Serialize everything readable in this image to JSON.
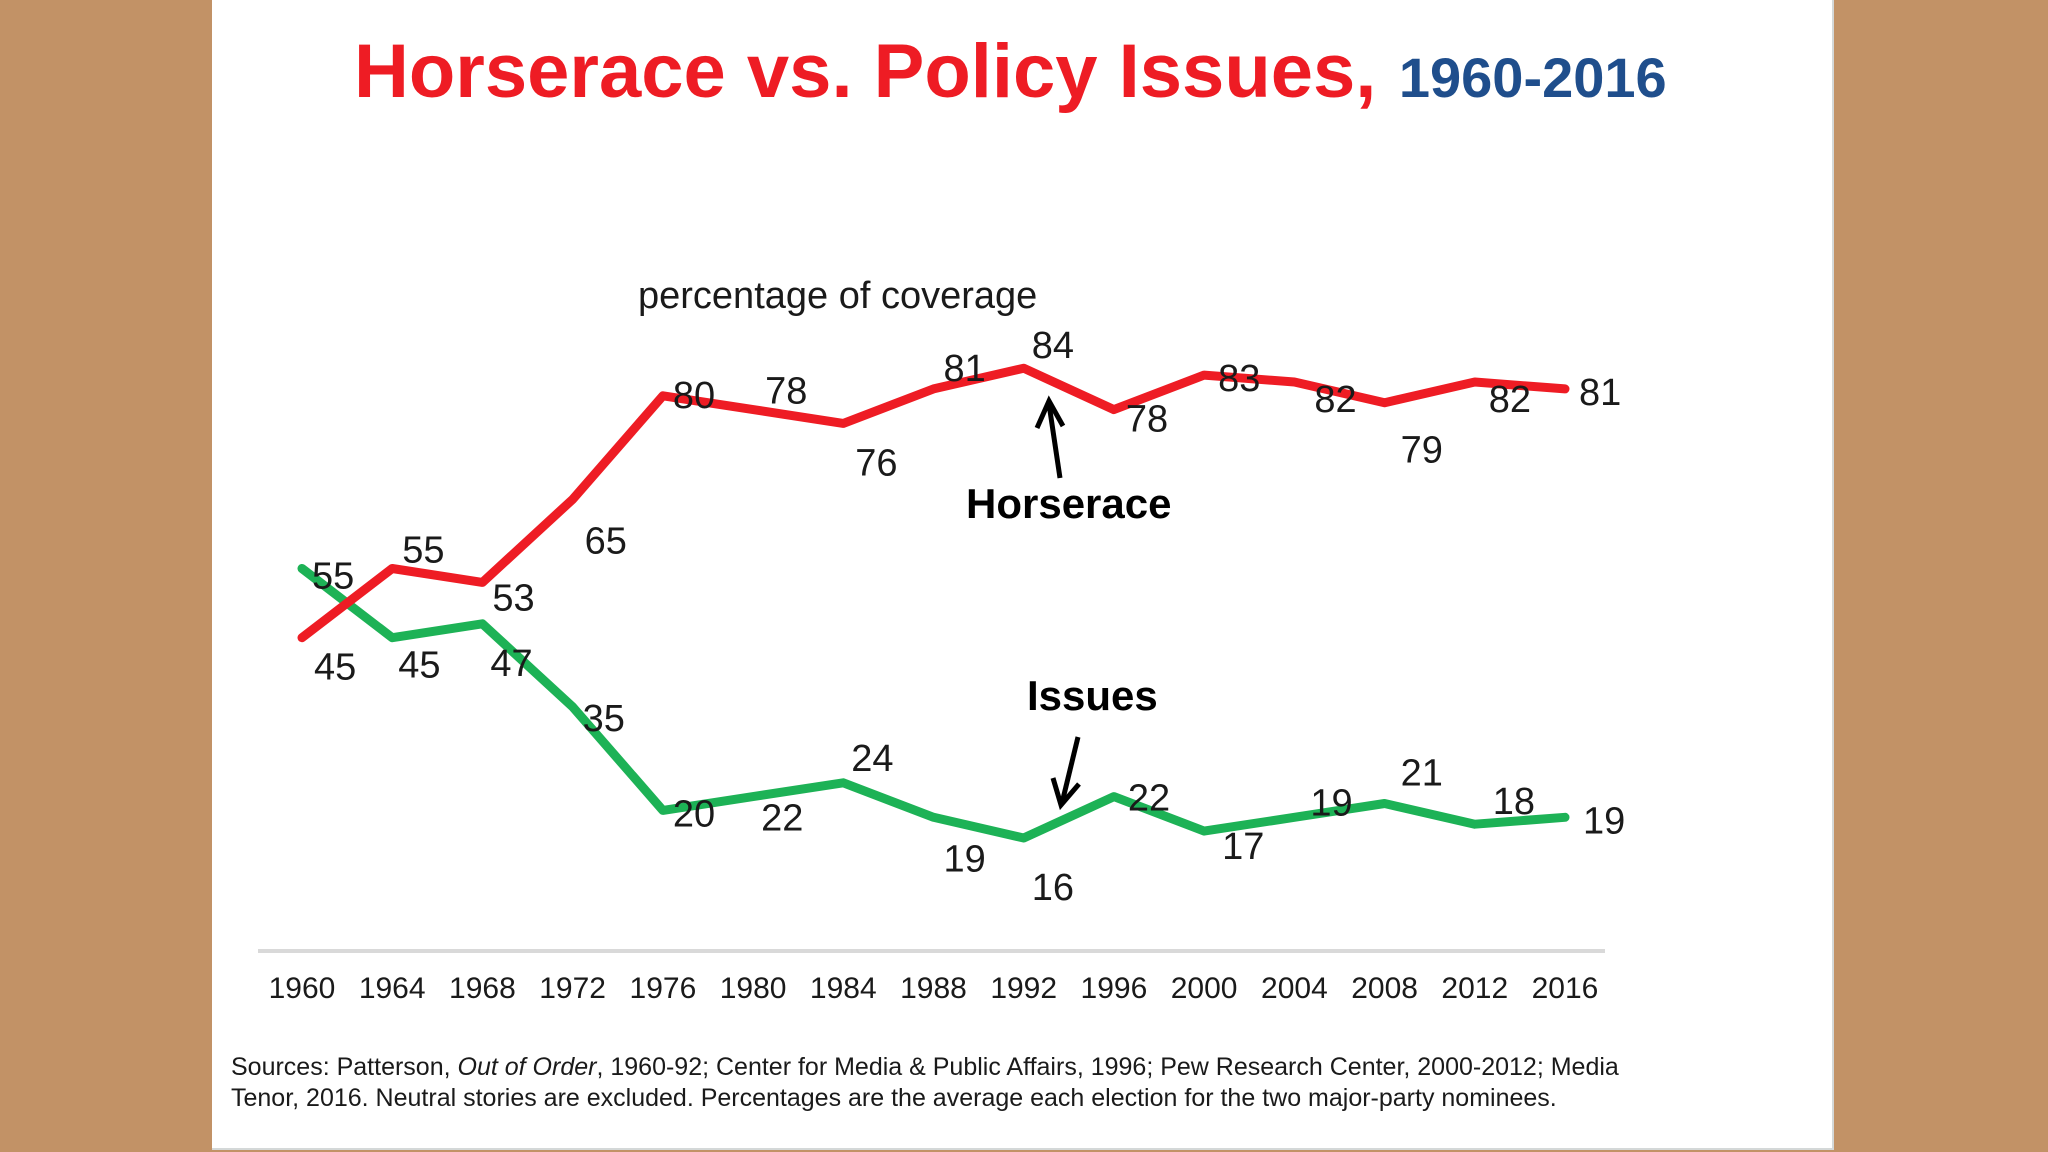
{
  "colors": {
    "background": "#c29266",
    "panel": "#ffffff",
    "horserace": "#ee1c24",
    "issues": "#1db256",
    "title_red": "#ee1c24",
    "title_navy": "#1f4e8c",
    "axis": "#d9d9d9",
    "text": "#1a1a1a"
  },
  "chart_data": {
    "type": "line",
    "title": "Horserace vs. Policy Issues,",
    "title_years": "1960-2016",
    "subtitle": "percentage of coverage",
    "xlabel": "",
    "ylabel": "percentage of coverage",
    "ylim": [
      0,
      100
    ],
    "grid": false,
    "legend": "none (series labeled by inline annotations)",
    "categories": [
      "1960",
      "1964",
      "1968",
      "1972",
      "1976",
      "1980",
      "1984",
      "1988",
      "1992",
      "1996",
      "2000",
      "2004",
      "2008",
      "2012",
      "2016"
    ],
    "series": [
      {
        "name": "Horserace",
        "color": "#ee1c24",
        "values": [
          45,
          55,
          53,
          65,
          80,
          78,
          76,
          81,
          84,
          78,
          83,
          82,
          79,
          82,
          81
        ],
        "annotation": "Horserace"
      },
      {
        "name": "Issues",
        "color": "#1db256",
        "values": [
          55,
          45,
          47,
          35,
          20,
          22,
          24,
          19,
          16,
          22,
          17,
          19,
          21,
          18,
          19
        ],
        "annotation": "Issues"
      }
    ],
    "footnote": {
      "line1_prefix": "Sources: Patterson, ",
      "line1_italic": "Out of Order",
      "line1_suffix": ", 1960-92; Center for Media & Public Affairs, 1996; Pew Research Center, 2000-2012; Media",
      "line2": "Tenor, 2016. Neutral stories are excluded.  Percentages are the average each election for the two major-party nominees."
    }
  }
}
